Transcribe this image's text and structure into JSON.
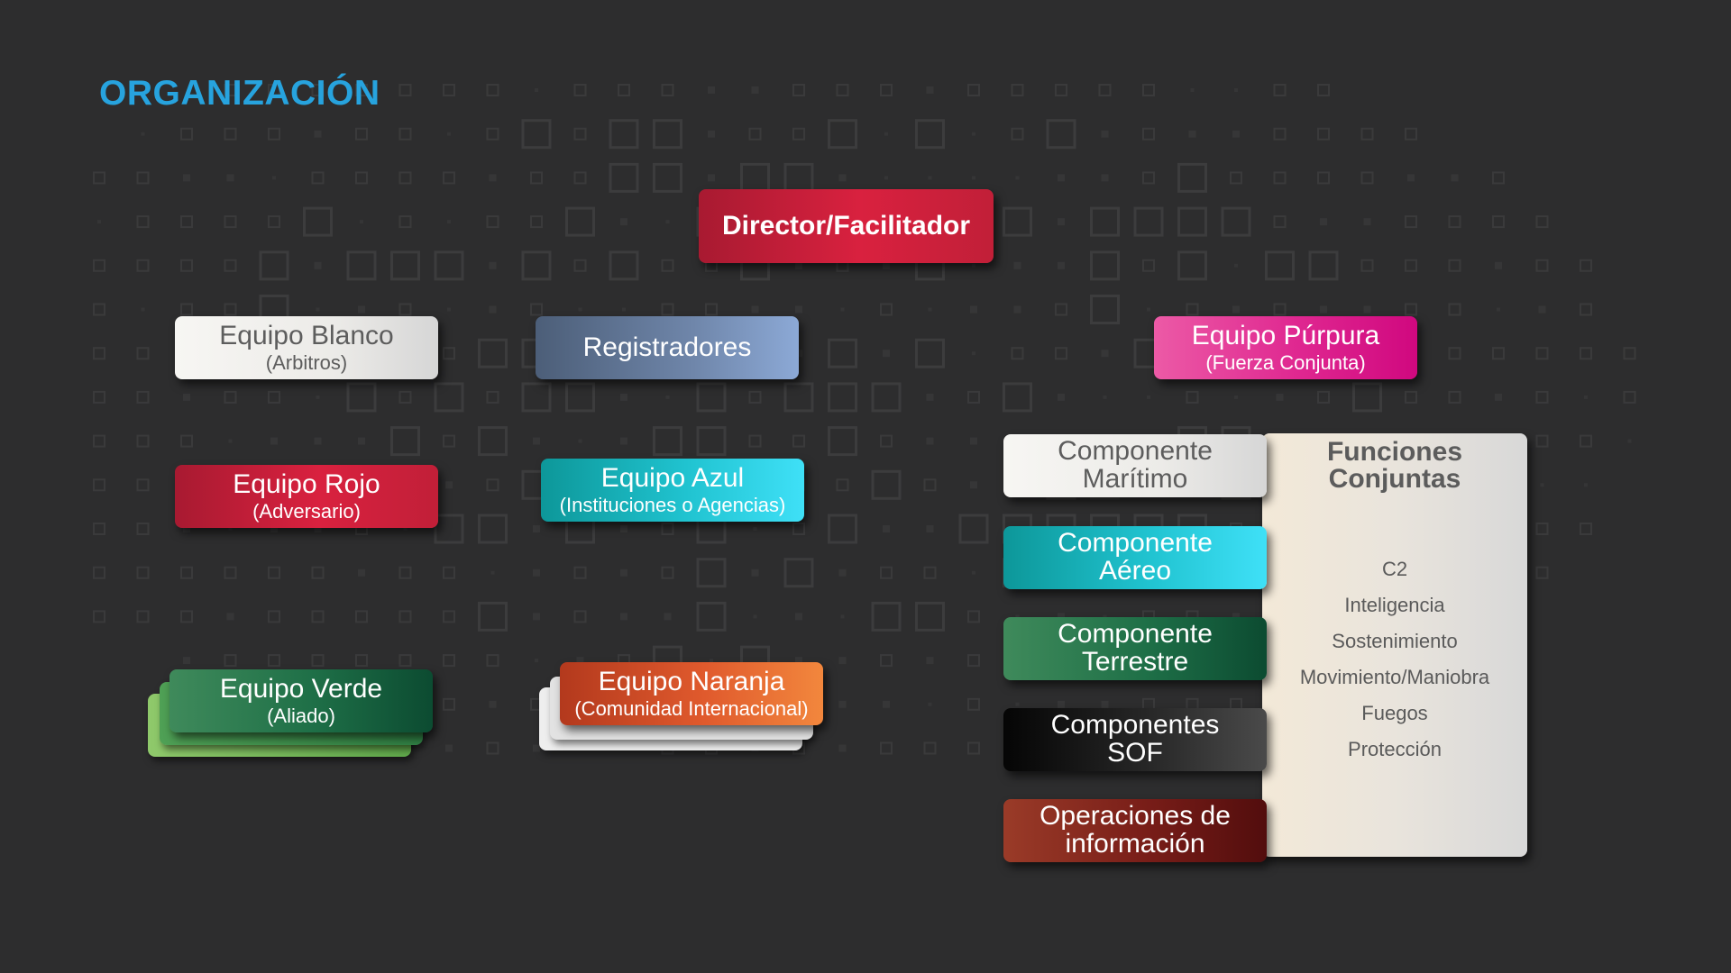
{
  "title": "ORGANIZACIÓN",
  "director": {
    "label": "Director/Facilitador"
  },
  "white_team": {
    "label": "Equipo Blanco",
    "sub": "(Arbitros)"
  },
  "registrars": {
    "label": "Registradores"
  },
  "purple_team": {
    "label": "Equipo Púrpura",
    "sub": "(Fuerza Conjunta)"
  },
  "red_team": {
    "label": "Equipo Rojo",
    "sub": "(Adversario)"
  },
  "blue_team": {
    "label": "Equipo Azul",
    "sub": "(Instituciones o Agencias)"
  },
  "green_team": {
    "label": "Equipo Verde",
    "sub": "(Aliado)"
  },
  "orange_team": {
    "label": "Equipo Naranja",
    "sub": "(Comunidad Internacional)"
  },
  "components": [
    {
      "line1": "Componente",
      "line2": "Marítimo"
    },
    {
      "line1": "Componente",
      "line2": "Aéreo"
    },
    {
      "line1": "Componente",
      "line2": "Terrestre"
    },
    {
      "line1": "Componentes",
      "line2": "SOF"
    },
    {
      "line1": "Operaciones de",
      "line2": "información"
    }
  ],
  "joint_functions": {
    "title_line1": "Funciones",
    "title_line2": "Conjuntas",
    "items": [
      "C2",
      "Inteligencia",
      "Sostenimiento",
      "Movimiento/Maniobra",
      "Fuegos",
      "Protección"
    ]
  },
  "colors": {
    "background": "#2d2d2e",
    "title": "#27a3de",
    "red": "#d9213f",
    "white": "#ecebe8",
    "slate": "#6f86aa",
    "magenta": "#df2790",
    "teal": "#20c3d0",
    "green": "#1e6f47",
    "orange": "#e05a2d",
    "black": "#272727",
    "maroon": "#781d18"
  }
}
